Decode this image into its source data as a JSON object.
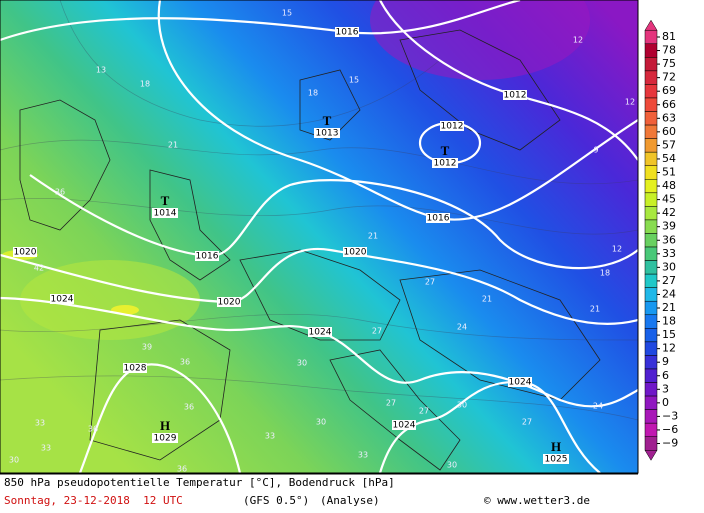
{
  "isobar_labels": [
    "1016",
    "1012",
    "1012",
    "1016",
    "1016",
    "1020",
    "1020",
    "1024",
    "1020",
    "1024",
    "1028",
    "1024",
    "1024"
  ],
  "pressure_systems": [
    {
      "symbol": "T",
      "pressure": "1013"
    },
    {
      "symbol": "T",
      "pressure": "1012"
    },
    {
      "symbol": "T",
      "pressure": "1014"
    },
    {
      "symbol": "H",
      "pressure": "1029"
    },
    {
      "symbol": "H",
      "pressure": "1025"
    }
  ],
  "temperature_labels": [
    15,
    12,
    13,
    18,
    18,
    15,
    21,
    12,
    9,
    36,
    21,
    42,
    12,
    18,
    27,
    21,
    21,
    24,
    27,
    39,
    36,
    30,
    36,
    27,
    27,
    30,
    24,
    33,
    36,
    27,
    33,
    30,
    30,
    33,
    36,
    33,
    30
  ],
  "colorbar": {
    "ticks": [
      81,
      78,
      75,
      72,
      69,
      66,
      63,
      60,
      57,
      54,
      51,
      48,
      45,
      42,
      39,
      36,
      33,
      30,
      27,
      24,
      21,
      18,
      15,
      12,
      9,
      6,
      3,
      0,
      {
        "value": -3,
        "label": "−3"
      },
      {
        "value": -6,
        "label": "−6"
      },
      {
        "value": -9,
        "label": "−9"
      }
    ],
    "colors": [
      "#e4357d",
      "#b00030",
      "#c41a38",
      "#d6283c",
      "#e6363c",
      "#ee4a3a",
      "#f0603a",
      "#f07838",
      "#f09a30",
      "#f0c428",
      "#f0e020",
      "#e4f020",
      "#c8f028",
      "#a8e840",
      "#88dc50",
      "#68d060",
      "#48c878",
      "#30c0a0",
      "#20c8c8",
      "#20b8e8",
      "#1898f0",
      "#1878f0",
      "#1860e8",
      "#2048e0",
      "#3830d8",
      "#5020d0",
      "#7018c8",
      "#9018c0",
      "#a818b8",
      "#c018b0",
      "#a02090"
    ]
  },
  "footer": {
    "title": "850 hPa pseudopotentielle Temperatur [°C], Bodendruck [hPa]",
    "date": "Sonntag, 23-12-2018  12 UTC",
    "model": "(GFS 0.5°)",
    "run": "(Analyse)",
    "copyright": "© www.wetter3.de"
  }
}
